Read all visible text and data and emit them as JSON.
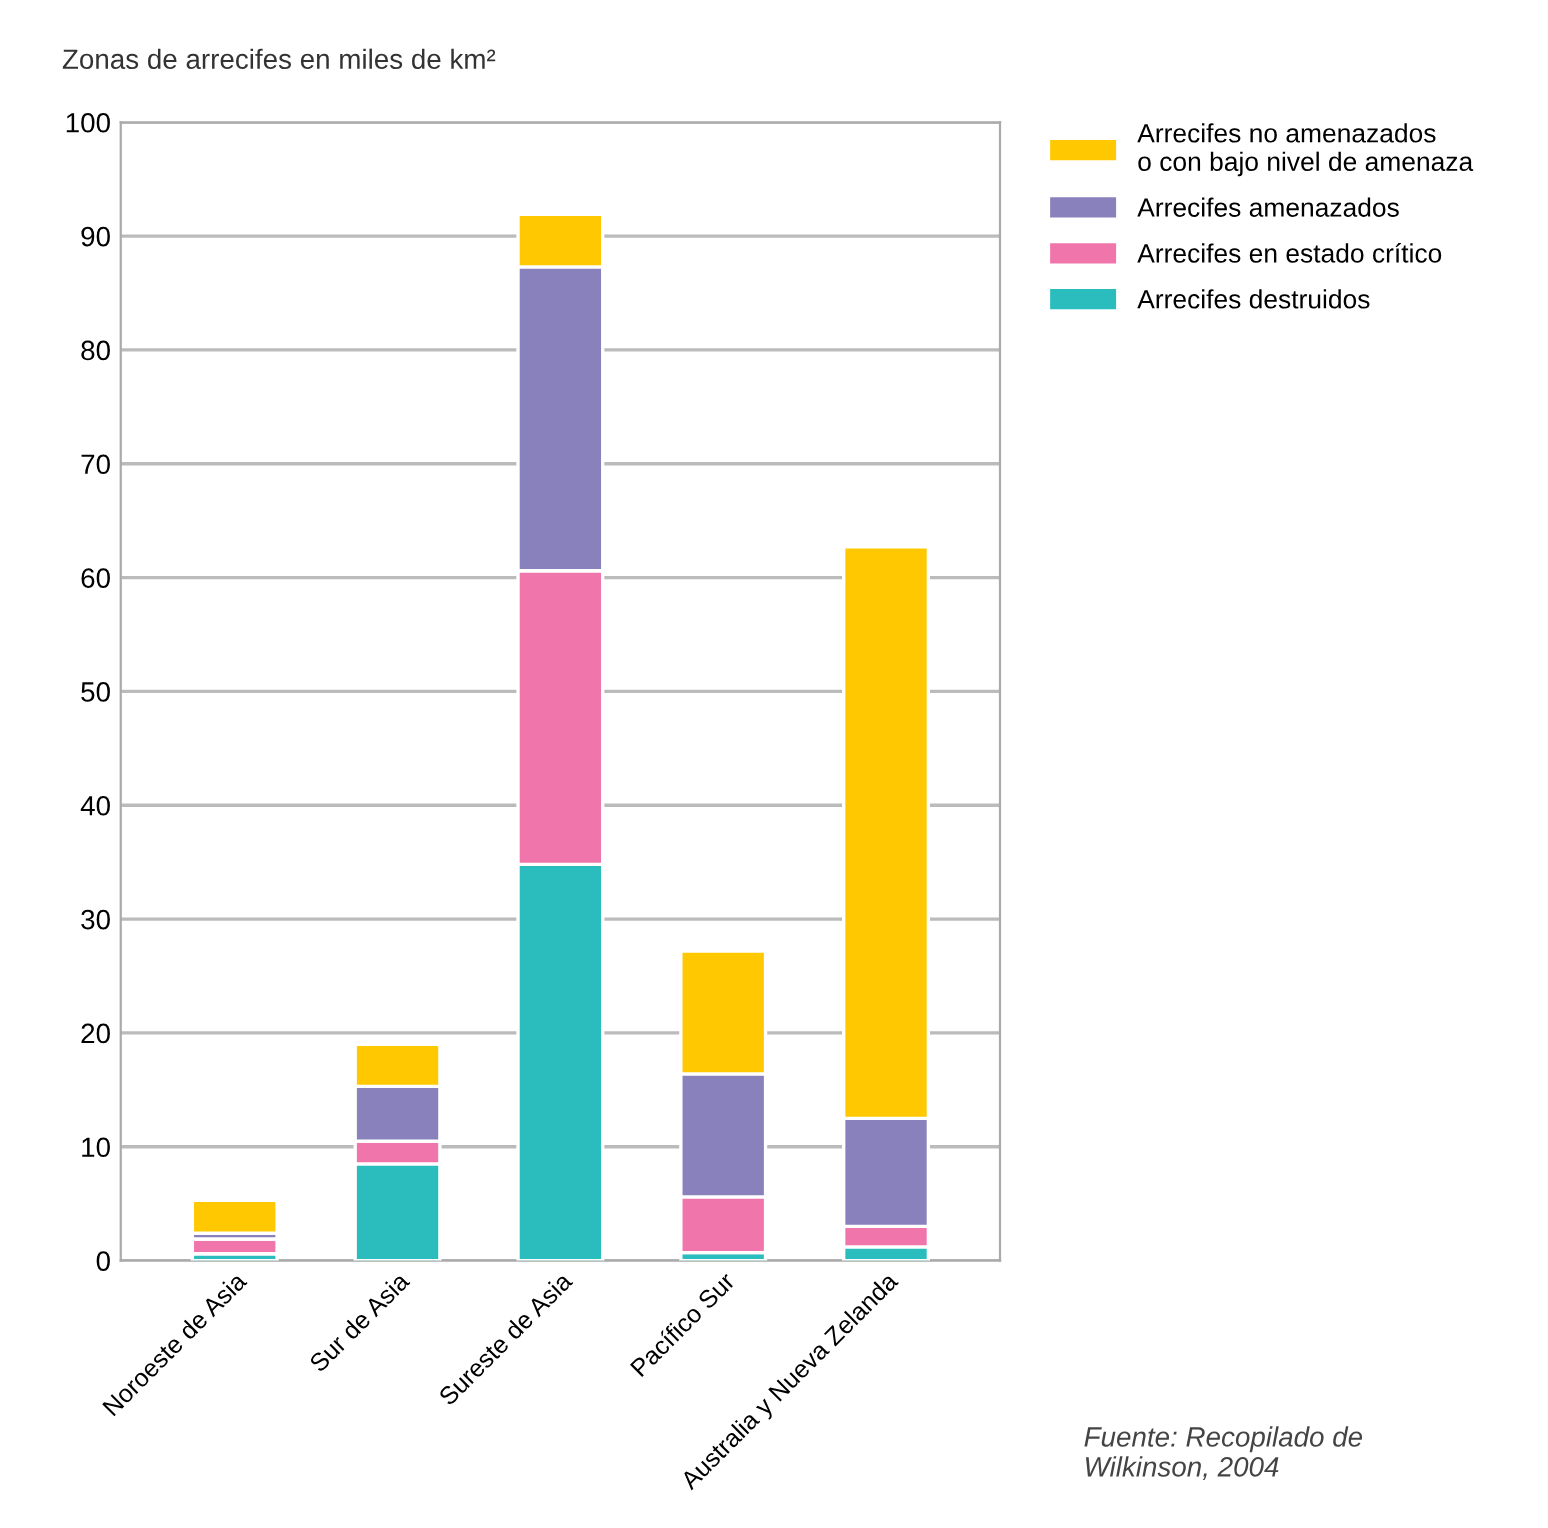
{
  "chart_data": {
    "type": "bar",
    "stacked": true,
    "ylabel": "Zonas de arrecifes en miles de km²",
    "categories": [
      "Noroeste de Asia",
      "Sur de Asia",
      "Sureste de Asia",
      "Pacífico Sur",
      "Australia y Nueva Zelanda"
    ],
    "series": [
      {
        "name": "Arrecifes destruidos",
        "color": "#2bbdbd",
        "values": [
          0.6,
          8.5,
          34.8,
          0.7,
          1.2
        ]
      },
      {
        "name": "Arrecifes en estado crítico",
        "color": "#f075aa",
        "values": [
          1.3,
          2.0,
          25.8,
          4.9,
          1.8
        ]
      },
      {
        "name": "Arrecifes amenazados",
        "color": "#8881bb",
        "values": [
          0.5,
          4.8,
          26.7,
          10.8,
          9.5
        ]
      },
      {
        "name": "Arrecifes no amenazados\no con bajo nivel de amenaza",
        "color": "#ffc800",
        "values": [
          2.9,
          3.7,
          4.6,
          10.8,
          50.2
        ]
      }
    ],
    "ylim": [
      0,
      100
    ],
    "yticks": [
      0,
      10,
      20,
      30,
      40,
      50,
      60,
      70,
      80,
      90,
      100
    ],
    "grid": "y",
    "legend": "top right",
    "annotations": [
      "Fuente: Recopilado de\nWilkinson, 2004"
    ]
  }
}
